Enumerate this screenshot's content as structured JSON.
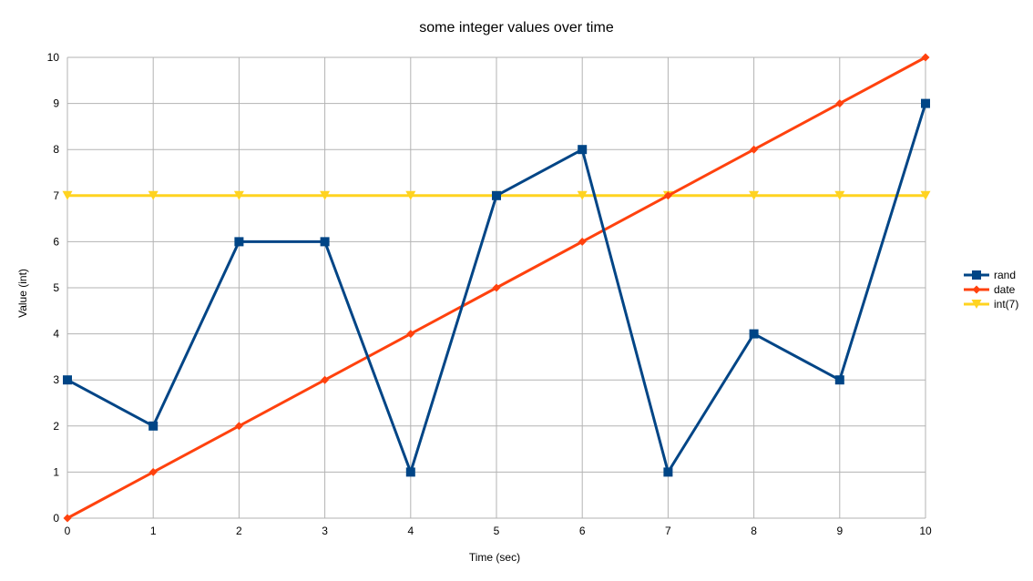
{
  "chart_data": {
    "type": "line",
    "title": "some integer values over time",
    "xlabel": "Time (sec)",
    "ylabel": "Value (int)",
    "x": [
      0,
      1,
      2,
      3,
      4,
      5,
      6,
      7,
      8,
      9,
      10
    ],
    "xlim": [
      0,
      10
    ],
    "ylim": [
      0,
      10
    ],
    "x_ticks": [
      0,
      1,
      2,
      3,
      4,
      5,
      6,
      7,
      8,
      9,
      10
    ],
    "y_ticks": [
      0,
      1,
      2,
      3,
      4,
      5,
      6,
      7,
      8,
      9,
      10
    ],
    "grid": true,
    "legend_position": "right",
    "series": [
      {
        "name": "rand",
        "color": "#004586",
        "marker": "square",
        "values": [
          3,
          2,
          6,
          6,
          1,
          7,
          8,
          1,
          4,
          3,
          9
        ]
      },
      {
        "name": "date",
        "color": "#ff420e",
        "marker": "diamond",
        "values": [
          0,
          1,
          2,
          3,
          4,
          5,
          6,
          7,
          8,
          9,
          10
        ]
      },
      {
        "name": "int(7)",
        "color": "#ffd320",
        "marker": "triangle-down",
        "values": [
          7,
          7,
          7,
          7,
          7,
          7,
          7,
          7,
          7,
          7,
          7
        ]
      }
    ]
  }
}
